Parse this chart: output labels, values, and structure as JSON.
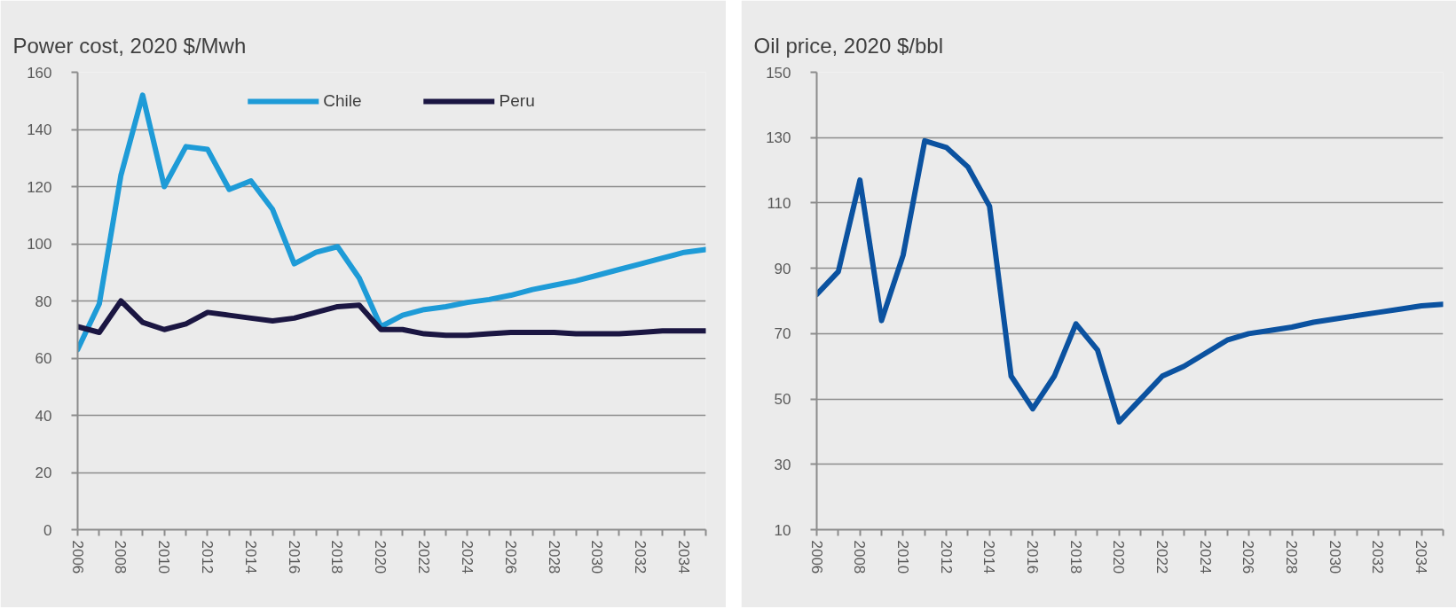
{
  "chart_data": [
    {
      "type": "line",
      "title": "Power cost, 2020 $/Mwh",
      "x": [
        2006,
        2007,
        2008,
        2009,
        2010,
        2011,
        2012,
        2013,
        2014,
        2015,
        2016,
        2017,
        2018,
        2019,
        2020,
        2021,
        2022,
        2023,
        2024,
        2025,
        2026,
        2027,
        2028,
        2029,
        2030,
        2031,
        2032,
        2033,
        2034,
        2035
      ],
      "xlim": [
        2006,
        2035
      ],
      "xticks": [
        2006,
        {
          "value": 2007,
          "label": null
        },
        2008,
        {
          "value": 2009,
          "label": null
        },
        2010,
        {
          "value": 2011,
          "label": null
        },
        2012,
        {
          "value": 2013,
          "label": null
        },
        2014,
        {
          "value": 2015,
          "label": null
        },
        2016,
        {
          "value": 2017,
          "label": null
        },
        2018,
        {
          "value": 2019,
          "label": null
        },
        2020,
        {
          "value": 2021,
          "label": null
        },
        2022,
        {
          "value": 2023,
          "label": null
        },
        2024,
        {
          "value": 2025,
          "label": null
        },
        2026,
        {
          "value": 2027,
          "label": null
        },
        2028,
        {
          "value": 2029,
          "label": null
        },
        2030,
        {
          "value": 2031,
          "label": null
        },
        2032,
        {
          "value": 2033,
          "label": null
        },
        2034,
        {
          "value": 2035,
          "label": null
        }
      ],
      "ylim": [
        0,
        160
      ],
      "yticks": [
        0,
        20,
        40,
        60,
        80,
        100,
        120,
        140,
        160
      ],
      "grid": "y",
      "legend": "top",
      "line_style": "solid",
      "series": [
        {
          "name": "Chile",
          "color": "#1e9bd7",
          "values": [
            63,
            79,
            124,
            152,
            120,
            134,
            133,
            119,
            122,
            112,
            93,
            97,
            99,
            88,
            71,
            75,
            77,
            78,
            79.5,
            80.5,
            82,
            84,
            85.5,
            87,
            89,
            91,
            93,
            95,
            97,
            98
          ]
        },
        {
          "name": "Peru",
          "color": "#1b1642",
          "values": [
            71,
            69,
            80,
            72.5,
            70,
            72,
            76,
            75,
            74,
            73,
            74,
            76,
            78,
            78.5,
            70,
            70,
            68.5,
            68,
            68,
            68.5,
            69,
            69,
            69,
            68.5,
            68.5,
            68.5,
            69,
            69.5,
            69.5,
            69.5
          ]
        }
      ]
    },
    {
      "type": "line",
      "title": "Oil price, 2020 $/bbl",
      "x": [
        2006,
        2007,
        2008,
        2009,
        2010,
        2011,
        2012,
        2013,
        2014,
        2015,
        2016,
        2017,
        2018,
        2019,
        2020,
        2021,
        2022,
        2023,
        2024,
        2025,
        2026,
        2027,
        2028,
        2029,
        2030,
        2031,
        2032,
        2033,
        2034,
        2035
      ],
      "xlim": [
        2006,
        2035
      ],
      "xticks": [
        2006,
        {
          "value": 2007,
          "label": null
        },
        2008,
        {
          "value": 2009,
          "label": null
        },
        2010,
        {
          "value": 2011,
          "label": null
        },
        2012,
        {
          "value": 2013,
          "label": null
        },
        2014,
        {
          "value": 2015,
          "label": null
        },
        2016,
        {
          "value": 2017,
          "label": null
        },
        2018,
        {
          "value": 2019,
          "label": null
        },
        2020,
        {
          "value": 2021,
          "label": null
        },
        2022,
        {
          "value": 2023,
          "label": null
        },
        2024,
        {
          "value": 2025,
          "label": null
        },
        2026,
        {
          "value": 2027,
          "label": null
        },
        2028,
        {
          "value": 2029,
          "label": null
        },
        2030,
        {
          "value": 2031,
          "label": null
        },
        2032,
        {
          "value": 2033,
          "label": null
        },
        2034,
        {
          "value": 2035,
          "label": null
        }
      ],
      "ylim": [
        10,
        150
      ],
      "yticks": [
        10,
        30,
        50,
        70,
        90,
        110,
        130,
        150
      ],
      "grid": "y",
      "line_style": "solid",
      "series": [
        {
          "color": "#0b52a0",
          "values": [
            82,
            89,
            117,
            74,
            94,
            129,
            127,
            121,
            109,
            57,
            47,
            57,
            73,
            65,
            43,
            50,
            57,
            60,
            64,
            68,
            70,
            71,
            72,
            73.5,
            74.5,
            75.5,
            76.5,
            77.5,
            78.5,
            79
          ]
        }
      ]
    }
  ]
}
